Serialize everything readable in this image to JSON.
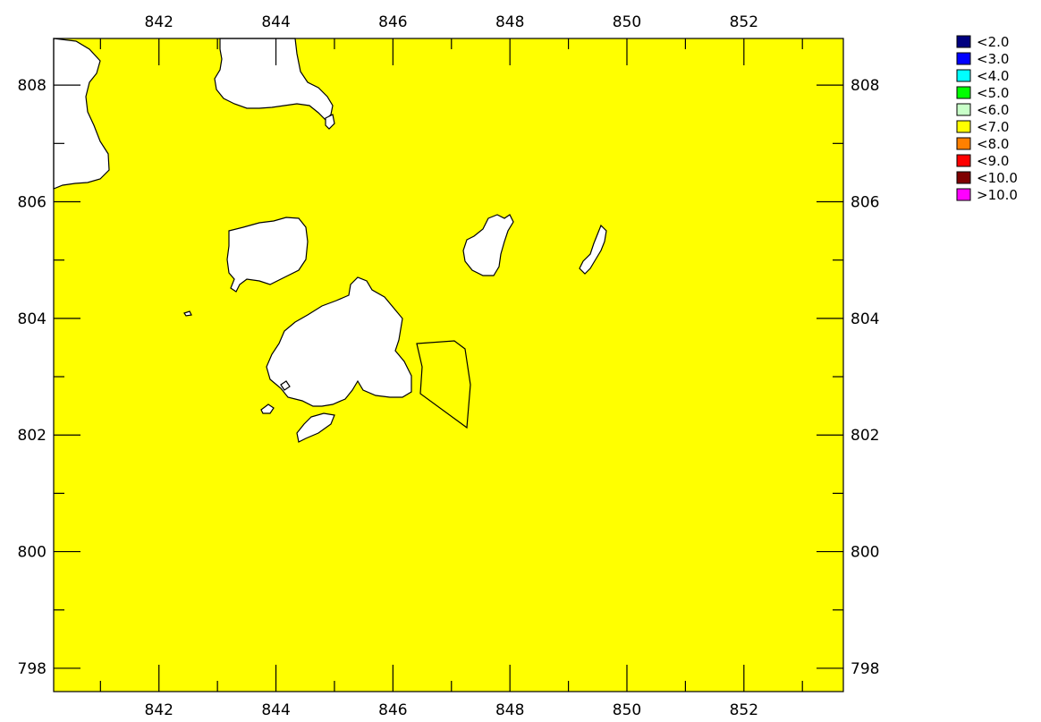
{
  "map": {
    "x_axis": {
      "range": [
        840.2,
        853.7
      ],
      "ticks": [
        "842",
        "844",
        "846",
        "848",
        "850",
        "852"
      ],
      "tick_values": [
        842,
        844,
        846,
        848,
        850,
        852
      ]
    },
    "y_axis": {
      "range": [
        797.6,
        808.8
      ],
      "ticks": [
        "798",
        "800",
        "802",
        "804",
        "806",
        "808"
      ],
      "tick_values": [
        798,
        800,
        802,
        804,
        806,
        808
      ]
    },
    "fill_color": "#ffff00",
    "land_color": "#ffffff"
  },
  "legend": [
    {
      "label": "<2.0",
      "color": "#00007f"
    },
    {
      "label": "<3.0",
      "color": "#0000ff"
    },
    {
      "label": "<4.0",
      "color": "#00ffff"
    },
    {
      "label": "<5.0",
      "color": "#00ff00"
    },
    {
      "label": "<6.0",
      "color": "#c8ffc8"
    },
    {
      "label": "<7.0",
      "color": "#ffff00"
    },
    {
      "label": "<8.0",
      "color": "#ff8000"
    },
    {
      "label": "<9.0",
      "color": "#ff0000"
    },
    {
      "label": "<10.0",
      "color": "#7f0000"
    },
    {
      "label": ">10.0",
      "color": "#ff00ff"
    }
  ]
}
